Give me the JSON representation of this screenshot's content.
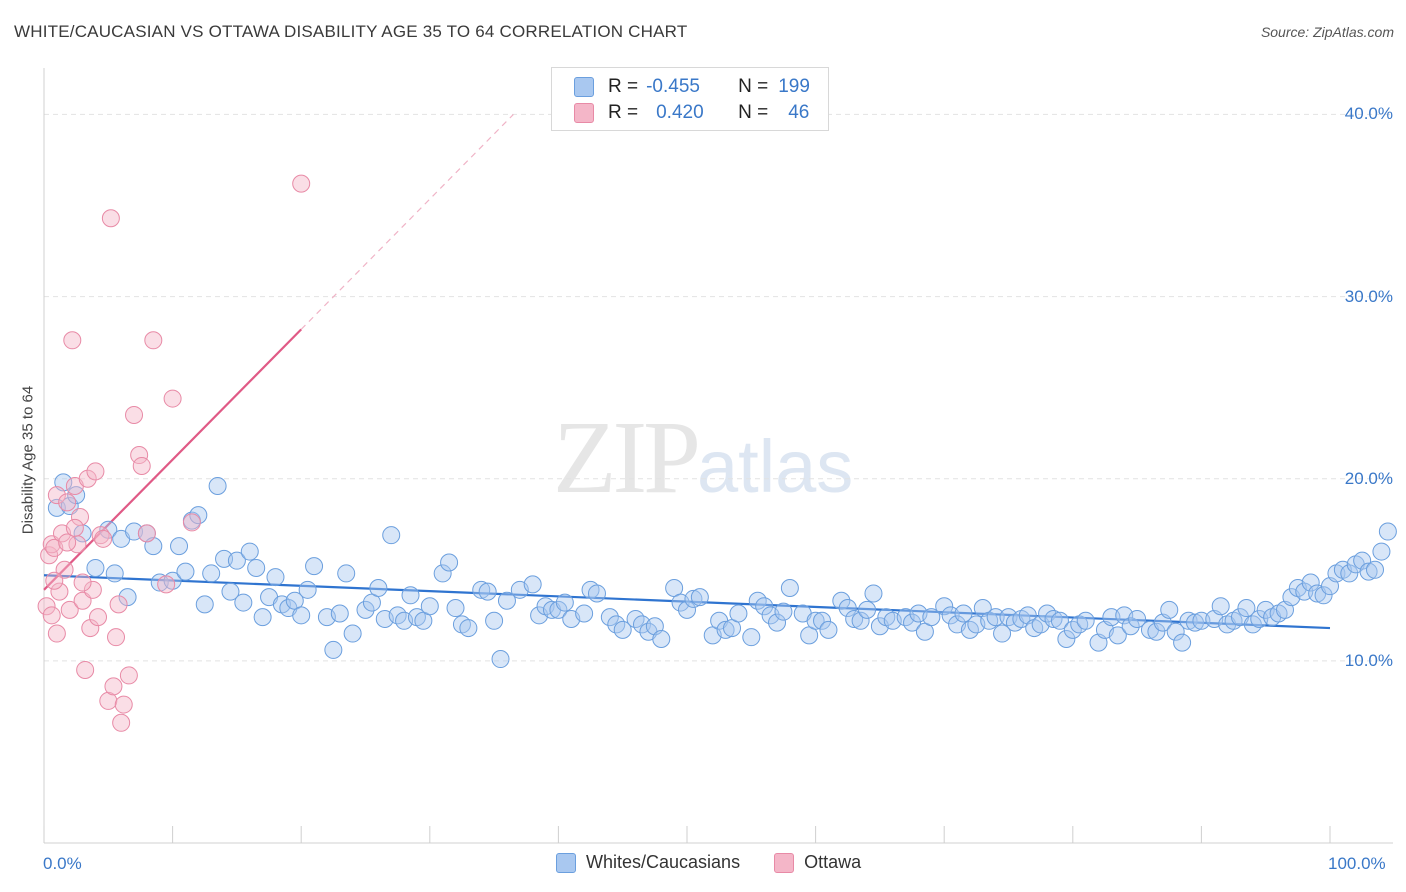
{
  "title": "WHITE/CAUCASIAN VS OTTAWA DISABILITY AGE 35 TO 64 CORRELATION CHART",
  "source": "Source: ZipAtlas.com",
  "watermark": {
    "zip": "ZIP",
    "atlas": "atlas"
  },
  "legend_stats": [
    {
      "r_label": "R =",
      "r_value": "-0.455",
      "n_label": "N =",
      "n_value": "199",
      "color": "#a9c8f0"
    },
    {
      "r_label": "R =",
      "r_value": "0.420",
      "n_label": "N =",
      "n_value": "46",
      "color": "#f4b6c8"
    }
  ],
  "chart_data": {
    "type": "scatter",
    "title": "WHITE/CAUCASIAN VS OTTAWA DISABILITY AGE 35 TO 64 CORRELATION CHART",
    "xlabel": "",
    "ylabel": "Disability Age 35 to 64",
    "xlim": [
      0,
      100
    ],
    "ylim": [
      0,
      42
    ],
    "x_tick_labels": [
      "0.0%",
      "100.0%"
    ],
    "y_ticks": [
      10,
      20,
      30,
      40
    ],
    "y_tick_labels": [
      "10.0%",
      "20.0%",
      "30.0%",
      "40.0%"
    ],
    "grid": true,
    "legend_position": "bottom",
    "series": [
      {
        "name": "Whites/Caucasians",
        "color": "#a9c8f0",
        "edge": "#6b9fde",
        "trend": {
          "x": [
            0,
            100
          ],
          "y": [
            14.7,
            11.8
          ],
          "color": "#2f74d0"
        },
        "points": [
          [
            1,
            18.4
          ],
          [
            1.5,
            19.8
          ],
          [
            2,
            18.5
          ],
          [
            2.5,
            19.1
          ],
          [
            3,
            17.0
          ],
          [
            4,
            15.1
          ],
          [
            5,
            17.2
          ],
          [
            5.5,
            14.8
          ],
          [
            6,
            16.7
          ],
          [
            6.5,
            13.5
          ],
          [
            7,
            17.1
          ],
          [
            8,
            17.0
          ],
          [
            8.5,
            16.3
          ],
          [
            9,
            14.3
          ],
          [
            10,
            14.4
          ],
          [
            10.5,
            16.3
          ],
          [
            11,
            14.9
          ],
          [
            11.5,
            17.7
          ],
          [
            12,
            18.0
          ],
          [
            12.5,
            13.1
          ],
          [
            13,
            14.8
          ],
          [
            13.5,
            19.6
          ],
          [
            14,
            15.6
          ],
          [
            14.5,
            13.8
          ],
          [
            15,
            15.5
          ],
          [
            15.5,
            13.2
          ],
          [
            16,
            16.0
          ],
          [
            16.5,
            15.1
          ],
          [
            17,
            12.4
          ],
          [
            17.5,
            13.5
          ],
          [
            18,
            14.6
          ],
          [
            18.5,
            13.1
          ],
          [
            19,
            12.9
          ],
          [
            19.5,
            13.3
          ],
          [
            20,
            12.5
          ],
          [
            20.5,
            13.9
          ],
          [
            21,
            15.2
          ],
          [
            22,
            12.4
          ],
          [
            22.5,
            10.6
          ],
          [
            23,
            12.6
          ],
          [
            23.5,
            14.8
          ],
          [
            24,
            11.5
          ],
          [
            25,
            12.8
          ],
          [
            25.5,
            13.2
          ],
          [
            26,
            14.0
          ],
          [
            26.5,
            12.3
          ],
          [
            27,
            16.9
          ],
          [
            27.5,
            12.5
          ],
          [
            28,
            12.2
          ],
          [
            28.5,
            13.6
          ],
          [
            29,
            12.4
          ],
          [
            29.5,
            12.2
          ],
          [
            30,
            13.0
          ],
          [
            31,
            14.8
          ],
          [
            31.5,
            15.4
          ],
          [
            32,
            12.9
          ],
          [
            32.5,
            12.0
          ],
          [
            33,
            11.8
          ],
          [
            34,
            13.9
          ],
          [
            34.5,
            13.8
          ],
          [
            35,
            12.2
          ],
          [
            35.5,
            10.1
          ],
          [
            36,
            13.3
          ],
          [
            37,
            13.9
          ],
          [
            38,
            14.2
          ],
          [
            38.5,
            12.5
          ],
          [
            39,
            13.0
          ],
          [
            39.5,
            12.8
          ],
          [
            40,
            12.8
          ],
          [
            40.5,
            13.2
          ],
          [
            41,
            12.3
          ],
          [
            42,
            12.6
          ],
          [
            42.5,
            13.9
          ],
          [
            43,
            13.7
          ],
          [
            44,
            12.4
          ],
          [
            44.5,
            12.0
          ],
          [
            45,
            11.7
          ],
          [
            46,
            12.3
          ],
          [
            46.5,
            12.0
          ],
          [
            47,
            11.6
          ],
          [
            47.5,
            11.9
          ],
          [
            48,
            11.2
          ],
          [
            49,
            14.0
          ],
          [
            49.5,
            13.2
          ],
          [
            50,
            12.8
          ],
          [
            50.5,
            13.4
          ],
          [
            51,
            13.5
          ],
          [
            52,
            11.4
          ],
          [
            52.5,
            12.2
          ],
          [
            53,
            11.7
          ],
          [
            53.5,
            11.8
          ],
          [
            54,
            12.6
          ],
          [
            55,
            11.3
          ],
          [
            55.5,
            13.3
          ],
          [
            56,
            13.0
          ],
          [
            56.5,
            12.5
          ],
          [
            57,
            12.1
          ],
          [
            57.5,
            12.7
          ],
          [
            58,
            14.0
          ],
          [
            59,
            12.6
          ],
          [
            59.5,
            11.4
          ],
          [
            60,
            12.2
          ],
          [
            60.5,
            12.2
          ],
          [
            61,
            11.7
          ],
          [
            62,
            13.3
          ],
          [
            62.5,
            12.9
          ],
          [
            63,
            12.3
          ],
          [
            63.5,
            12.2
          ],
          [
            64,
            12.8
          ],
          [
            64.5,
            13.7
          ],
          [
            65,
            11.9
          ],
          [
            65.5,
            12.4
          ],
          [
            66,
            12.2
          ],
          [
            67,
            12.4
          ],
          [
            67.5,
            12.1
          ],
          [
            68,
            12.6
          ],
          [
            68.5,
            11.6
          ],
          [
            69,
            12.4
          ],
          [
            70,
            13.0
          ],
          [
            70.5,
            12.5
          ],
          [
            71,
            12.0
          ],
          [
            71.5,
            12.6
          ],
          [
            72,
            11.7
          ],
          [
            72.5,
            12.0
          ],
          [
            73,
            12.9
          ],
          [
            73.5,
            12.2
          ],
          [
            74,
            12.4
          ],
          [
            74.5,
            11.5
          ],
          [
            75,
            12.4
          ],
          [
            75.5,
            12.1
          ],
          [
            76,
            12.3
          ],
          [
            76.5,
            12.5
          ],
          [
            77,
            11.8
          ],
          [
            77.5,
            12.0
          ],
          [
            78,
            12.6
          ],
          [
            78.5,
            12.3
          ],
          [
            79,
            12.2
          ],
          [
            79.5,
            11.2
          ],
          [
            80,
            11.7
          ],
          [
            80.5,
            12.0
          ],
          [
            81,
            12.2
          ],
          [
            82,
            11.0
          ],
          [
            82.5,
            11.7
          ],
          [
            83,
            12.4
          ],
          [
            83.5,
            11.4
          ],
          [
            84,
            12.5
          ],
          [
            84.5,
            11.9
          ],
          [
            85,
            12.3
          ],
          [
            86,
            11.7
          ],
          [
            86.5,
            11.6
          ],
          [
            87,
            12.1
          ],
          [
            87.5,
            12.8
          ],
          [
            88,
            11.6
          ],
          [
            88.5,
            11.0
          ],
          [
            89,
            12.2
          ],
          [
            89.5,
            12.1
          ],
          [
            90,
            12.2
          ],
          [
            91,
            12.3
          ],
          [
            91.5,
            13.0
          ],
          [
            92,
            12.0
          ],
          [
            92.5,
            12.2
          ],
          [
            93,
            12.4
          ],
          [
            93.5,
            12.9
          ],
          [
            94,
            12.0
          ],
          [
            94.5,
            12.3
          ],
          [
            95,
            12.8
          ],
          [
            95.5,
            12.4
          ],
          [
            96,
            12.6
          ],
          [
            96.5,
            12.8
          ],
          [
            97,
            13.5
          ],
          [
            97.5,
            14.0
          ],
          [
            98,
            13.8
          ],
          [
            98.5,
            14.3
          ],
          [
            99,
            13.7
          ],
          [
            99.5,
            13.6
          ],
          [
            100,
            14.1
          ],
          [
            100.5,
            14.8
          ],
          [
            101,
            15.0
          ],
          [
            101.5,
            14.8
          ],
          [
            102,
            15.3
          ],
          [
            102.5,
            15.5
          ],
          [
            103,
            14.9
          ],
          [
            103.5,
            15.0
          ],
          [
            104,
            16.0
          ],
          [
            104.5,
            17.1
          ]
        ]
      },
      {
        "name": "Ottawa",
        "color": "#f4b6c8",
        "edge": "#e88aa6",
        "trend": {
          "x": [
            0,
            20
          ],
          "y": [
            13.9,
            28.2
          ],
          "dashed_to": [
            36.5,
            40.0
          ],
          "color": "#e05a86"
        },
        "points": [
          [
            0.2,
            13.0
          ],
          [
            0.4,
            15.8
          ],
          [
            0.6,
            16.4
          ],
          [
            0.8,
            16.2
          ],
          [
            1,
            19.1
          ],
          [
            1.2,
            13.8
          ],
          [
            1.4,
            17.0
          ],
          [
            1.6,
            15.0
          ],
          [
            1.8,
            18.7
          ],
          [
            2,
            12.8
          ],
          [
            2.2,
            27.6
          ],
          [
            2.4,
            19.6
          ],
          [
            2.6,
            16.4
          ],
          [
            2.8,
            17.9
          ],
          [
            3,
            13.3
          ],
          [
            3.2,
            9.5
          ],
          [
            3.4,
            20.0
          ],
          [
            3.6,
            11.8
          ],
          [
            3.8,
            13.9
          ],
          [
            4,
            20.4
          ],
          [
            4.2,
            12.4
          ],
          [
            4.4,
            16.9
          ],
          [
            4.6,
            16.7
          ],
          [
            5,
            7.8
          ],
          [
            5.2,
            34.3
          ],
          [
            5.4,
            8.6
          ],
          [
            5.6,
            11.3
          ],
          [
            5.8,
            13.1
          ],
          [
            6,
            6.6
          ],
          [
            6.2,
            7.6
          ],
          [
            6.6,
            9.2
          ],
          [
            7,
            23.5
          ],
          [
            7.4,
            21.3
          ],
          [
            7.6,
            20.7
          ],
          [
            8,
            17.0
          ],
          [
            8.5,
            27.6
          ],
          [
            9.5,
            14.2
          ],
          [
            10,
            24.4
          ],
          [
            11.5,
            17.6
          ],
          [
            20,
            36.2
          ],
          [
            1,
            11.5
          ],
          [
            0.6,
            12.5
          ],
          [
            1.8,
            16.5
          ],
          [
            3,
            14.3
          ],
          [
            2.4,
            17.3
          ],
          [
            0.8,
            14.4
          ]
        ]
      }
    ]
  }
}
